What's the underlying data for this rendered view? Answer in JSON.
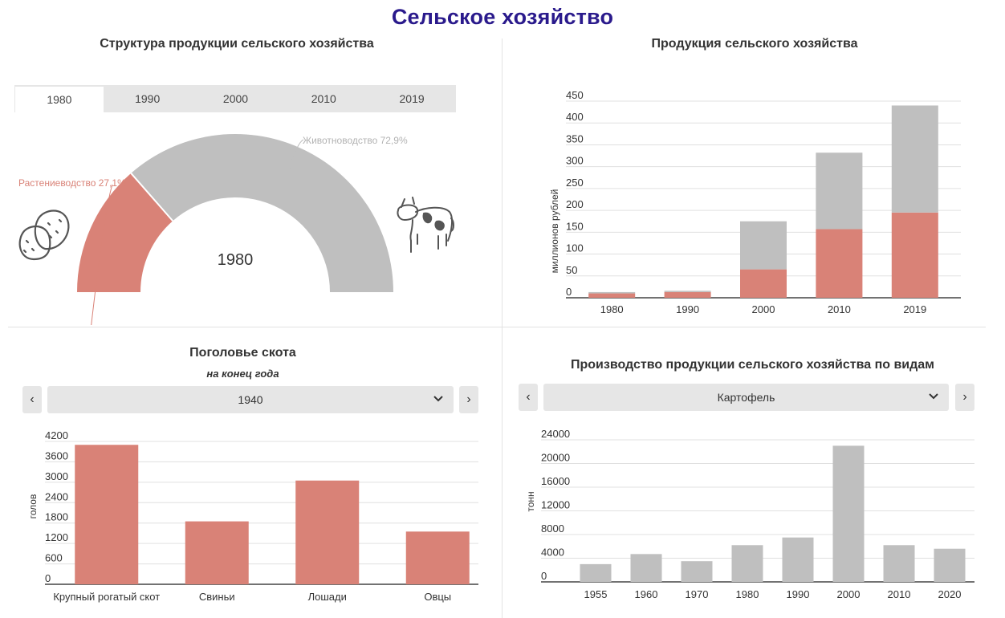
{
  "page": {
    "title": "Сельское хозяйство"
  },
  "structure": {
    "title": "Структура продукции сельского хозяйства",
    "tabs": [
      "1980",
      "1990",
      "2000",
      "2010",
      "2019"
    ],
    "active_tab": "1980",
    "center_label": "1980",
    "plant_icon": "potato-icon",
    "animal_icon": "cow-icon"
  },
  "production": {
    "title": "Продукция сельского хозяйства",
    "ylabel": "миллионов рублей"
  },
  "livestock": {
    "title": "Поголовье скота",
    "subtitle": "на конец года",
    "selected": "1940",
    "prev": "‹",
    "next": "›"
  },
  "by_type": {
    "title": "Производство продукции сельского хозяйства по видам",
    "selected": "Картофель",
    "prev": "‹",
    "next": "›"
  },
  "colors": {
    "plant": "#d98277",
    "animal": "#bfbfbf",
    "grid": "#e0e0e0",
    "axis": "#444444",
    "title": "#2a1a8c"
  },
  "chart_data": [
    {
      "type": "pie",
      "subtype": "semi-donut",
      "slices": [
        {
          "name": "Растениеводство",
          "value": 27.1,
          "label": "Растениеводство 27,1%"
        },
        {
          "name": "Животноводство",
          "value": 72.9,
          "label": "Животноводство 72,9%"
        }
      ]
    },
    {
      "type": "bar",
      "stacked": true,
      "categories": [
        "1980",
        "1990",
        "2000",
        "2010",
        "2019"
      ],
      "series": [
        {
          "key": "plant",
          "values": [
            10,
            13,
            65,
            157,
            195
          ]
        },
        {
          "key": "animal",
          "values": [
            3,
            3,
            110,
            175,
            245
          ]
        }
      ],
      "ylabel": "миллионов рублей",
      "ylim": [
        0,
        450
      ],
      "yticks": [
        0,
        50,
        100,
        150,
        200,
        250,
        300,
        350,
        400,
        450
      ],
      "grid": true
    },
    {
      "type": "bar",
      "categories": [
        "Крупный рогатый скот",
        "Свиньи",
        "Лошади",
        "Овцы"
      ],
      "values": [
        4100,
        1850,
        3050,
        1550
      ],
      "ylabel": "голов",
      "ylim": [
        0,
        4200
      ],
      "yticks": [
        0,
        600,
        1200,
        1800,
        2400,
        3000,
        3600,
        4200
      ],
      "grid": true
    },
    {
      "type": "bar",
      "categories": [
        "1955",
        "1960",
        "1970",
        "1980",
        "1990",
        "2000",
        "2010",
        "2020"
      ],
      "values": [
        3000,
        4700,
        3500,
        6200,
        7500,
        23000,
        6200,
        5600
      ],
      "ylabel": "тонн",
      "ylim": [
        0,
        24000
      ],
      "yticks": [
        0,
        4000,
        8000,
        12000,
        16000,
        20000,
        24000
      ],
      "grid": true
    }
  ]
}
